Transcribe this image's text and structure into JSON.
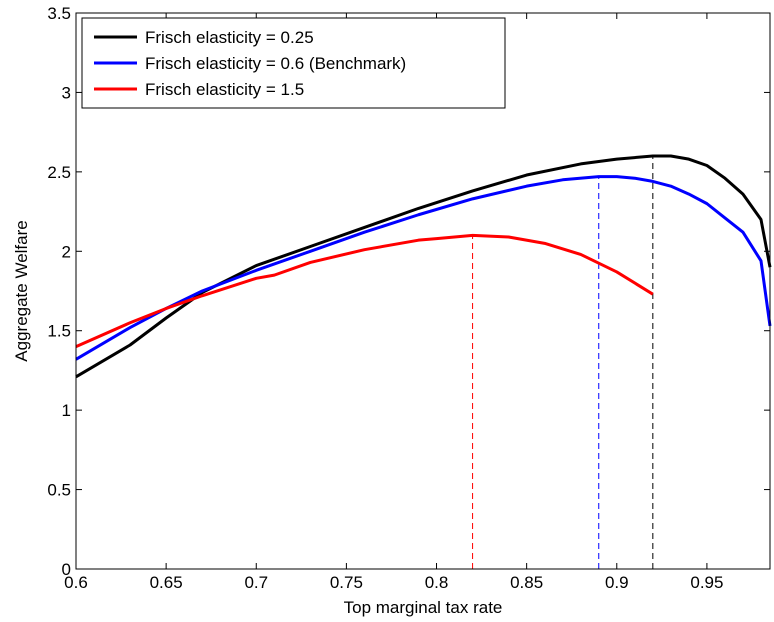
{
  "chart_data": {
    "type": "line",
    "xlabel": "Top marginal tax rate",
    "ylabel": "Aggregate Welfare",
    "xlim": [
      0.6,
      0.985
    ],
    "ylim": [
      0,
      3.5
    ],
    "xticks": [
      "0.6",
      "0.65",
      "0.7",
      "0.75",
      "0.8",
      "0.85",
      "0.9",
      "0.95"
    ],
    "yticks": [
      "0",
      "0.5",
      "1",
      "1.5",
      "2",
      "2.5",
      "3",
      "3.5"
    ],
    "grid": false,
    "legend_position": "top-left",
    "series": [
      {
        "name": "Frisch elasticity = 0.25",
        "color": "#000000",
        "x": [
          0.6,
          0.63,
          0.65,
          0.67,
          0.7,
          0.73,
          0.76,
          0.79,
          0.82,
          0.85,
          0.88,
          0.9,
          0.92,
          0.93,
          0.94,
          0.95,
          0.96,
          0.97,
          0.98,
          0.985
        ],
        "y": [
          1.21,
          1.41,
          1.58,
          1.74,
          1.91,
          2.03,
          2.15,
          2.27,
          2.38,
          2.48,
          2.55,
          2.58,
          2.6,
          2.6,
          2.58,
          2.54,
          2.46,
          2.36,
          2.2,
          1.9
        ]
      },
      {
        "name": "Frisch elasticity = 0.6 (Benchmark)",
        "color": "#0000ff",
        "x": [
          0.6,
          0.63,
          0.65,
          0.67,
          0.7,
          0.73,
          0.76,
          0.79,
          0.82,
          0.85,
          0.87,
          0.89,
          0.9,
          0.91,
          0.92,
          0.93,
          0.94,
          0.95,
          0.96,
          0.97,
          0.98,
          0.985
        ],
        "y": [
          1.32,
          1.52,
          1.64,
          1.75,
          1.88,
          2.0,
          2.12,
          2.23,
          2.33,
          2.41,
          2.45,
          2.47,
          2.47,
          2.46,
          2.44,
          2.41,
          2.36,
          2.3,
          2.21,
          2.12,
          1.94,
          1.53
        ]
      },
      {
        "name": "Frisch elasticity = 1.5",
        "color": "#ff0000",
        "x": [
          0.6,
          0.63,
          0.65,
          0.67,
          0.7,
          0.71,
          0.73,
          0.76,
          0.79,
          0.8,
          0.82,
          0.84,
          0.86,
          0.88,
          0.9,
          0.92
        ],
        "y": [
          1.4,
          1.55,
          1.64,
          1.72,
          1.83,
          1.85,
          1.93,
          2.01,
          2.07,
          2.08,
          2.1,
          2.09,
          2.05,
          1.98,
          1.87,
          1.73
        ]
      }
    ],
    "reference_lines": [
      {
        "x": 0.82,
        "y_top": 2.1,
        "color": "#ff0000",
        "style": "dashed"
      },
      {
        "x": 0.89,
        "y_top": 2.47,
        "color": "#0000ff",
        "style": "dashed"
      },
      {
        "x": 0.92,
        "y_top": 2.6,
        "color": "#000000",
        "style": "dashed"
      }
    ]
  }
}
